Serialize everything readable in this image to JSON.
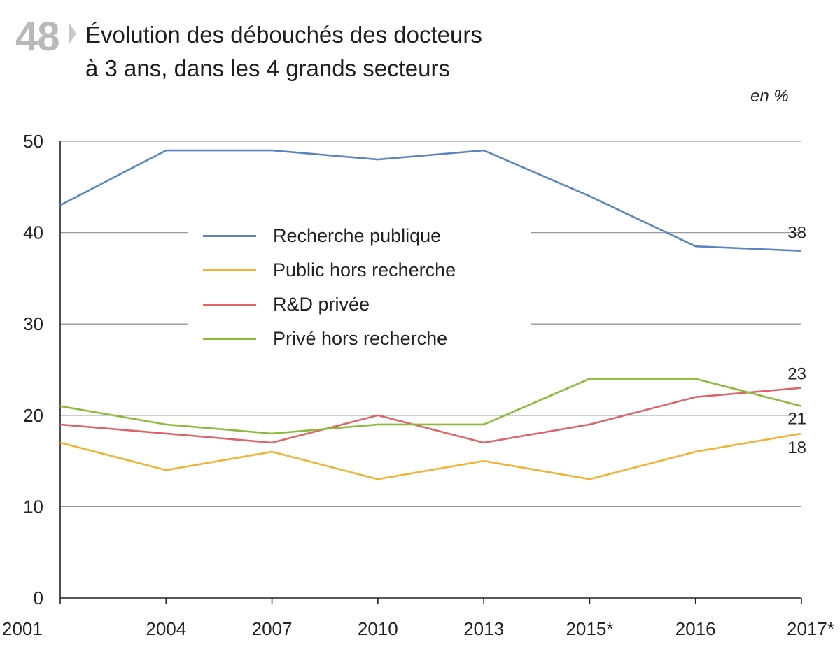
{
  "figure_number": "48",
  "title_lines": [
    "Évolution des débouchés des docteurs",
    "à 3 ans, dans les 4 grands secteurs"
  ],
  "unit_label": "en %",
  "chart_data": {
    "type": "line",
    "title": "Évolution des débouchés des docteurs à 3 ans, dans les 4 grands secteurs",
    "unit": "en %",
    "categories": [
      "2001",
      "2004",
      "2007",
      "2010",
      "2013",
      "2015*",
      "2016",
      "2017*"
    ],
    "yticks": [
      "0",
      "10",
      "20",
      "30",
      "40",
      "50"
    ],
    "ylim": [
      0,
      50
    ],
    "grid": "horizontal",
    "legend_placement": "center-left, inside plot",
    "series": [
      {
        "name": "Recherche publique",
        "color": "#5b85c0",
        "values": [
          43,
          49,
          49,
          48,
          49,
          44,
          38.5,
          38
        ],
        "end_label": "38"
      },
      {
        "name": "Public hors recherche",
        "color": "#f2b234",
        "values": [
          17,
          14,
          16,
          13,
          15,
          13,
          16,
          18
        ],
        "end_label": "18"
      },
      {
        "name": "R&D privée",
        "color": "#df6468",
        "values": [
          19,
          18,
          17,
          20,
          17,
          19,
          22,
          23
        ],
        "end_label": "23"
      },
      {
        "name": "Privé hors recherche",
        "color": "#8cbb3c",
        "values": [
          21,
          19,
          18,
          19,
          19,
          24,
          24,
          21
        ],
        "end_label": "21"
      }
    ]
  }
}
